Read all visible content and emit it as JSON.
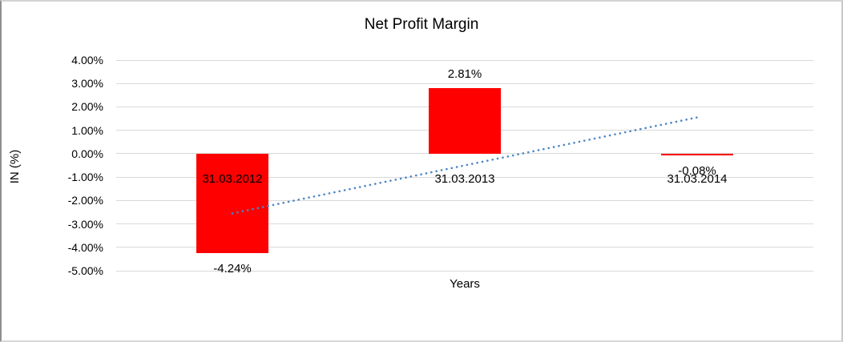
{
  "chart_data": {
    "type": "bar",
    "title": "Net Profit Margin",
    "xlabel": "Years",
    "ylabel": "IN (%)",
    "categories": [
      "31.03.2012",
      "31.03.2013",
      "31.03.2014"
    ],
    "values": [
      -4.24,
      2.81,
      -0.08
    ],
    "value_labels": [
      "-4.24%",
      "2.81%",
      "-0.08%"
    ],
    "ytick_labels": [
      "4.00%",
      "3.00%",
      "2.00%",
      "1.00%",
      "0.00%",
      "-1.00%",
      "-2.00%",
      "-3.00%",
      "-4.00%",
      "-5.00%"
    ],
    "ytick_values": [
      4,
      3,
      2,
      1,
      0,
      -1,
      -2,
      -3,
      -4,
      -5
    ],
    "ylim": [
      -5,
      4
    ],
    "grid": true,
    "legend": "none",
    "bar_color": "#ff0000",
    "gridline_color": "#d9d9d9",
    "text_color": "#000000",
    "background_color": "#ffffff",
    "trendline": {
      "style": "dotted",
      "color": "#4a86c6",
      "start_category_index": 0,
      "end_category_index": 2,
      "start_value": -2.55,
      "end_value": 1.55
    }
  }
}
